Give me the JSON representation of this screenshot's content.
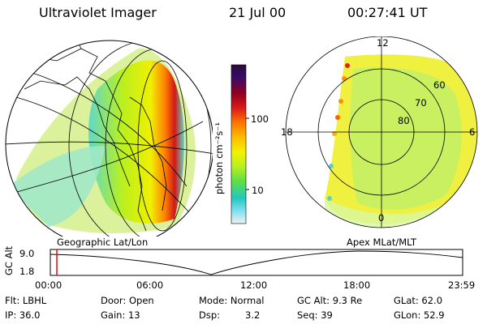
{
  "header": {
    "instrument": "Ultraviolet Imager",
    "date": "21 Jul 00",
    "time": "00:27:41 UT"
  },
  "colorbar": {
    "unit_label": "photon cm⁻²s⁻¹",
    "ticks": [
      "100",
      "10"
    ],
    "colors": [
      "#2a0a3a",
      "#3a0a6a",
      "#900020",
      "#d81818",
      "#ff7000",
      "#ffb800",
      "#f2f200",
      "#b8f020",
      "#60e040",
      "#20c8c0",
      "#80e0f0",
      "#f0f0f0"
    ]
  },
  "panels": {
    "left_label": "Geographic Lat/Lon",
    "right_label": "Apex MLat/MLT",
    "mlat_labels": [
      "60",
      "70",
      "80"
    ],
    "mlt_labels": {
      "top": "12",
      "left": "18",
      "right": "6",
      "bottom": "0"
    }
  },
  "timeline": {
    "axis_title": "GC Alt",
    "y_ticks": [
      "9.0",
      "1.8"
    ],
    "x_ticks": [
      "00:00",
      "06:00",
      "12:00",
      "18:00",
      "23:59"
    ],
    "current_time_marker_color": "#ff0000"
  },
  "status": {
    "filter": "Flt: LBHL",
    "ip": "IP: 36.0",
    "door": "Door: Open",
    "gain": "Gain: 13",
    "mode": "Mode: Normal",
    "dsp_label": "Dsp:",
    "dsp_value": "3.2",
    "gc_alt": "GC Alt: 9.3 Re",
    "seq": "Seq: 39",
    "glat": "GLat: 62.0",
    "glon": "GLon: 52.9"
  }
}
